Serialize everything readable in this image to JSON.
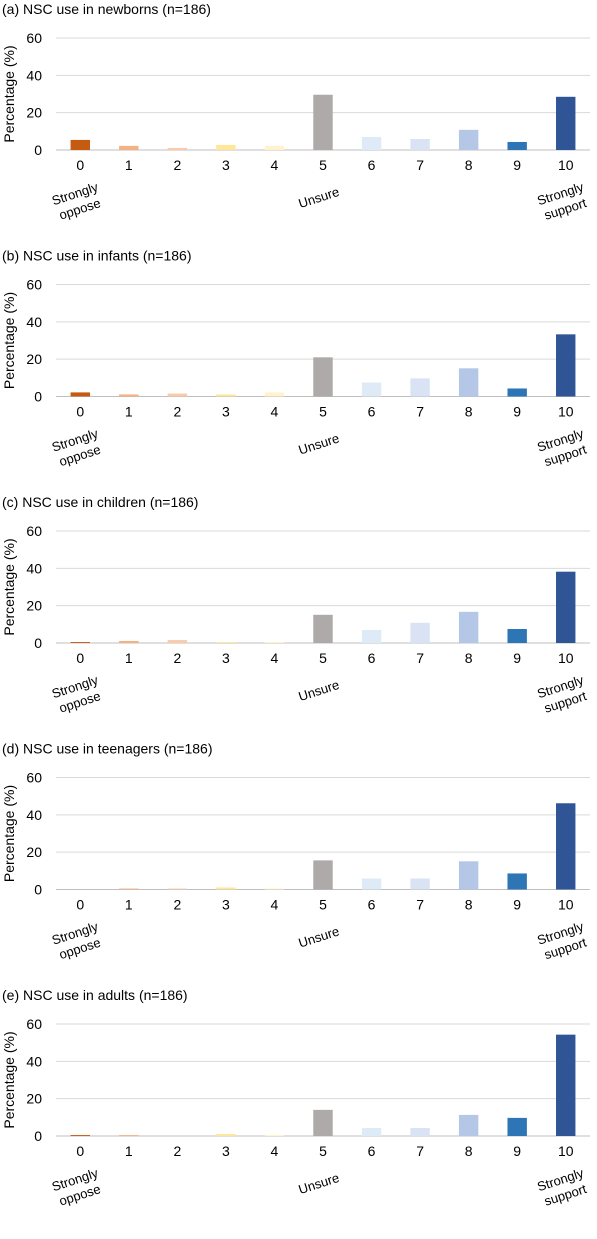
{
  "colors": {
    "c0": "#C55A11",
    "c1": "#F4B183",
    "c2": "#F8CBAD",
    "c3": "#FFE699",
    "c4": "#FFF2CC",
    "c5": "#AEAAAA",
    "c6": "#DEEBF7",
    "c7": "#DAE3F3",
    "c8": "#B4C7E7",
    "c9": "#2E75B6",
    "c10": "#2F5597",
    "grid": "#D9D9D9"
  },
  "chart_data": [
    {
      "type": "bar",
      "title": "(a) NSC use in newborns (n=186)",
      "ylabel": "Percentage (%)",
      "ylim": [
        0,
        60
      ],
      "yticks": [
        "0",
        "20",
        "40",
        "60"
      ],
      "categories": [
        "0",
        "1",
        "2",
        "3",
        "4",
        "5",
        "6",
        "7",
        "8",
        "9",
        "10"
      ],
      "category_notes": [
        "Strongly oppose",
        "",
        "",
        "",
        "",
        "Unsure",
        "",
        "",
        "",
        "",
        "Strongly support"
      ],
      "values": [
        5.4,
        2.2,
        1.1,
        2.7,
        2.2,
        29.6,
        7.0,
        5.9,
        10.8,
        4.3,
        28.5
      ],
      "grid": true
    },
    {
      "type": "bar",
      "title": "(b) NSC use in infants (n=186)",
      "ylabel": "Percentage (%)",
      "ylim": [
        0,
        60
      ],
      "yticks": [
        "0",
        "20",
        "40",
        "60"
      ],
      "categories": [
        "0",
        "1",
        "2",
        "3",
        "4",
        "5",
        "6",
        "7",
        "8",
        "9",
        "10"
      ],
      "category_notes": [
        "Strongly oppose",
        "",
        "",
        "",
        "",
        "Unsure",
        "",
        "",
        "",
        "",
        "Strongly support"
      ],
      "values": [
        2.2,
        1.1,
        1.6,
        1.1,
        2.2,
        21.0,
        7.5,
        9.7,
        15.1,
        4.3,
        33.3
      ],
      "grid": true
    },
    {
      "type": "bar",
      "title": "(c) NSC use in children (n=186)",
      "ylabel": "Percentage (%)",
      "ylim": [
        0,
        60
      ],
      "yticks": [
        "0",
        "20",
        "40",
        "60"
      ],
      "categories": [
        "0",
        "1",
        "2",
        "3",
        "4",
        "5",
        "6",
        "7",
        "8",
        "9",
        "10"
      ],
      "category_notes": [
        "Strongly oppose",
        "",
        "",
        "",
        "",
        "Unsure",
        "",
        "",
        "",
        "",
        "Strongly support"
      ],
      "values": [
        0.5,
        1.1,
        1.6,
        0.5,
        0.5,
        15.1,
        7.0,
        10.8,
        16.7,
        7.5,
        38.2
      ],
      "grid": true
    },
    {
      "type": "bar",
      "title": "(d) NSC use in teenagers (n=186)",
      "ylabel": "Percentage (%)",
      "ylim": [
        0,
        60
      ],
      "yticks": [
        "0",
        "20",
        "40",
        "60"
      ],
      "categories": [
        "0",
        "1",
        "2",
        "3",
        "4",
        "5",
        "6",
        "7",
        "8",
        "9",
        "10"
      ],
      "category_notes": [
        "Strongly oppose",
        "",
        "",
        "",
        "",
        "Unsure",
        "",
        "",
        "",
        "",
        "Strongly support"
      ],
      "values": [
        0.0,
        0.5,
        0.5,
        1.1,
        0.5,
        15.6,
        5.9,
        5.9,
        15.1,
        8.6,
        46.2
      ],
      "grid": true
    },
    {
      "type": "bar",
      "title": "(e) NSC use in adults (n=186)",
      "ylabel": "Percentage (%)",
      "ylim": [
        0,
        60
      ],
      "yticks": [
        "0",
        "20",
        "40",
        "60"
      ],
      "categories": [
        "0",
        "1",
        "2",
        "3",
        "4",
        "5",
        "6",
        "7",
        "8",
        "9",
        "10"
      ],
      "category_notes": [
        "Strongly oppose",
        "",
        "",
        "",
        "",
        "Unsure",
        "",
        "",
        "",
        "",
        "Strongly support"
      ],
      "values": [
        0.5,
        0.5,
        0.0,
        1.1,
        0.5,
        14.0,
        4.3,
        4.3,
        11.3,
        9.7,
        54.3
      ],
      "grid": true
    }
  ]
}
